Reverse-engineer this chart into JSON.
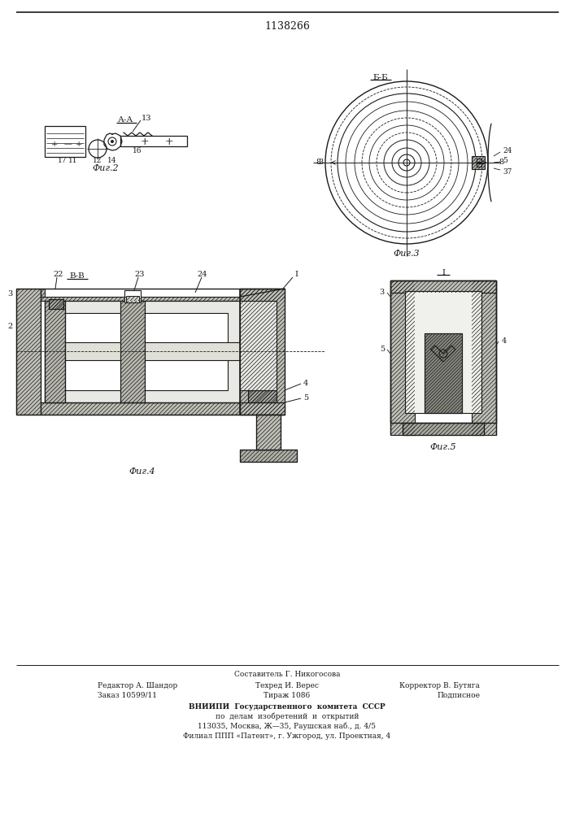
{
  "title": "1138266",
  "bg_color": "#ffffff",
  "line_color": "#1a1a1a",
  "fig2_label": "Фиг.2",
  "fig3_label": "Фиг.3",
  "fig4_label": "Фиг.4",
  "fig5_label": "Фиг.5",
  "section_aa": "А-А",
  "section_bb": "Б-Б",
  "section_vv": "В-В",
  "label_1": "1",
  "label_I": "I",
  "label_2": "2",
  "label_3": "3",
  "label_4": "4",
  "label_5": "5",
  "label_8": "8",
  "label_11": "11",
  "label_12": "12",
  "label_13": "13",
  "label_14": "14",
  "label_16": "16",
  "label_17": "17",
  "label_22": "22",
  "label_23": "23",
  "label_24": "24",
  "label_37": "37",
  "footer_line1": "Составитель Г. Никогосова",
  "footer_line2_left": "Редактор А. Шандор",
  "footer_line2_mid": "Техред И. Верес",
  "footer_line2_right": "Корректор В. Бутяга",
  "footer_line3_left": "Заказ 10599/11",
  "footer_line3_mid": "Тираж 1086",
  "footer_line3_right": "Подписное",
  "footer_vniip1": "ВНИИПИ  Государственного  комитета  СССР",
  "footer_vniip2": "по  делам  изобретений  и  открытий",
  "footer_vniip3": "113035, Москва, Ж—35, Раушская наб., д. 4/5",
  "footer_vniip4": "Филиал ППП «Патент», г. Ужгород, ул. Проектная, 4"
}
